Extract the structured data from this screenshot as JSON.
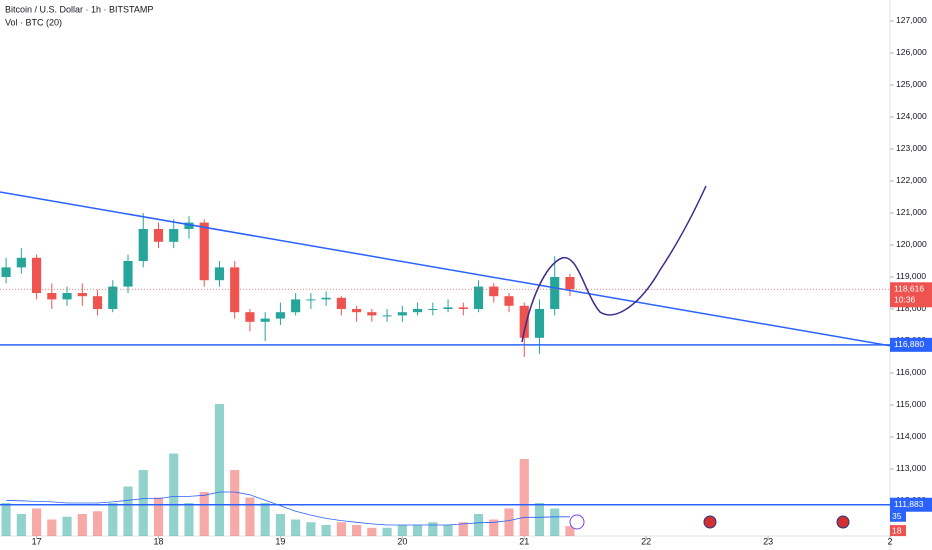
{
  "chart_data": {
    "type": "candlestick",
    "title": "Bitcoin / U.S. Dollar · 1h · BITSTAMP",
    "subtitle": "Vol · BTC (20)",
    "x": [
      16.75,
      16.875,
      17,
      17.125,
      17.25,
      17.375,
      17.5,
      17.625,
      17.75,
      17.875,
      18,
      18.125,
      18.25,
      18.375,
      18.5,
      18.625,
      18.75,
      18.875,
      19,
      19.125,
      19.25,
      19.375,
      19.5,
      19.625,
      19.75,
      19.875,
      20,
      20.125,
      20.25,
      20.375,
      20.5,
      20.625,
      20.75,
      20.875,
      21,
      21.125,
      21.25,
      21.375
    ],
    "open": [
      119000,
      119300,
      119600,
      118500,
      118300,
      118500,
      118400,
      118000,
      118700,
      119500,
      120500,
      120100,
      120500,
      120700,
      118900,
      119300,
      117900,
      117600,
      117700,
      117900,
      118300,
      118300,
      118350,
      118000,
      117900,
      117800,
      117800,
      117900,
      118000,
      118000,
      118050,
      118000,
      118700,
      118400,
      118100,
      117100,
      118000,
      119000
    ],
    "high": [
      119600,
      119900,
      119700,
      118800,
      118700,
      118800,
      118600,
      118900,
      119700,
      121000,
      120700,
      120800,
      120900,
      120800,
      119500,
      119500,
      118000,
      117900,
      118200,
      118500,
      118500,
      118550,
      118400,
      118100,
      118000,
      118000,
      118100,
      118200,
      118200,
      118300,
      118200,
      118900,
      118800,
      118500,
      118200,
      118300,
      119650,
      119100
    ],
    "low": [
      118800,
      119100,
      118300,
      118000,
      118100,
      118100,
      117800,
      117900,
      118500,
      119300,
      119900,
      119900,
      120200,
      118700,
      118700,
      117700,
      117300,
      117000,
      117500,
      117800,
      118000,
      118100,
      117800,
      117600,
      117600,
      117600,
      117600,
      117800,
      117800,
      117900,
      117800,
      117900,
      118200,
      117900,
      116500,
      116600,
      117800,
      118400
    ],
    "close": [
      119300,
      119600,
      118500,
      118300,
      118500,
      118400,
      118000,
      118700,
      119500,
      120500,
      120100,
      120500,
      120700,
      118900,
      119300,
      117900,
      117600,
      117700,
      117900,
      118300,
      118300,
      118350,
      118000,
      117900,
      117800,
      117800,
      117900,
      118000,
      118000,
      118050,
      118000,
      118700,
      118400,
      118100,
      117100,
      118000,
      119000,
      118616
    ],
    "volume": [
      60,
      40,
      50,
      30,
      35,
      40,
      45,
      60,
      90,
      120,
      70,
      150,
      60,
      80,
      240,
      120,
      70,
      60,
      40,
      30,
      25,
      20,
      25,
      20,
      15,
      15,
      20,
      20,
      25,
      20,
      25,
      40,
      30,
      50,
      140,
      60,
      50,
      18
    ],
    "volume_ma": [
      65,
      64,
      63,
      62,
      60,
      60,
      60,
      62,
      65,
      68,
      68,
      72,
      72,
      74,
      80,
      80,
      75,
      65,
      55,
      45,
      38,
      32,
      28,
      25,
      22,
      20,
      20,
      20,
      20,
      20,
      22,
      24,
      25,
      28,
      34,
      34,
      35,
      35
    ],
    "up_color": "#26a69a",
    "down_color": "#ef5350",
    "xlim": [
      16.7,
      24.0
    ],
    "xticks": [
      17,
      18,
      19,
      20,
      21,
      22,
      23,
      {
        "value": 24,
        "label": "2"
      }
    ],
    "ylim": [
      110906,
      127656
    ],
    "yticks": [
      {
        "value": 112000,
        "label": "112,000"
      },
      {
        "value": 113000,
        "label": "113,000"
      },
      {
        "value": 114000,
        "label": "114,000"
      },
      {
        "value": 115000,
        "label": "115,000"
      },
      {
        "value": 116000,
        "label": "116,000"
      },
      {
        "value": 117000,
        "label": "117,000"
      },
      {
        "value": 118000,
        "label": "118,000"
      },
      {
        "value": 119000,
        "label": "119,000"
      },
      {
        "value": 120000,
        "label": "120,000"
      },
      {
        "value": 121000,
        "label": "121,000"
      },
      {
        "value": 122000,
        "label": "122,000"
      },
      {
        "value": 123000,
        "label": "123,000"
      },
      {
        "value": 124000,
        "label": "124,000"
      },
      {
        "value": 125000,
        "label": "125,000"
      },
      {
        "value": 126000,
        "label": "126,000"
      },
      {
        "value": 127000,
        "label": "127,000"
      }
    ],
    "volume_lim": [
      0,
      975
    ],
    "hlines": [
      {
        "value": 116880,
        "label": "116,880"
      },
      {
        "value": 111883,
        "label": "111,883"
      }
    ],
    "trendline": {
      "x": [
        16.7,
        24.0
      ],
      "y": [
        121656,
        116850
      ]
    },
    "last_price": {
      "value": 118616,
      "label": "118,616"
    },
    "countdown": "10:36"
  }
}
